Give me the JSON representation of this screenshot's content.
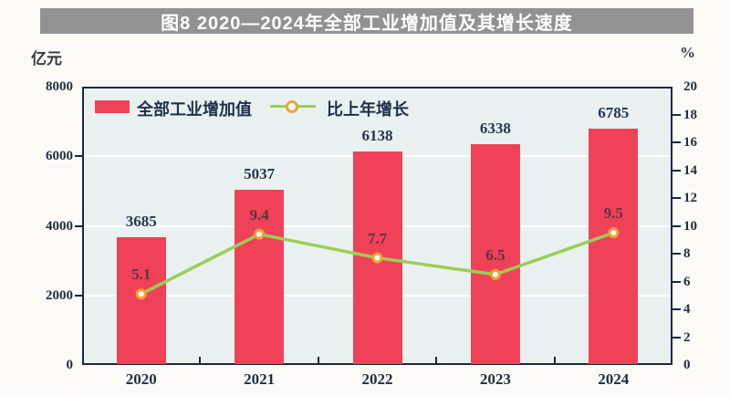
{
  "title": {
    "text": "图8  2020—2024年全部工业增加值及其增长速度"
  },
  "axes": {
    "left_unit": "亿元",
    "right_unit": "%"
  },
  "legend": {
    "bar_label": "全部工业增加值",
    "line_label": "比上年增长"
  },
  "chart_data": {
    "type": "bar",
    "title": "图8 2020—2024年全部工业增加值及其增长速度",
    "categories": [
      "2020",
      "2021",
      "2022",
      "2023",
      "2024"
    ],
    "series": [
      {
        "name": "全部工业增加值",
        "type": "bar",
        "axis": "left",
        "unit": "亿元",
        "values": [
          3685,
          5037,
          6138,
          6338,
          6785
        ],
        "color": "#ef4258"
      },
      {
        "name": "比上年增长",
        "type": "line",
        "axis": "right",
        "unit": "%",
        "values": [
          5.1,
          9.4,
          7.7,
          6.5,
          9.5
        ],
        "color": "#9bce52",
        "marker_color": "#f0a233"
      }
    ],
    "left_axis": {
      "label": "亿元",
      "min": 0,
      "max": 8000,
      "step": 2000,
      "tick_labels": [
        "0",
        "2000",
        "4000",
        "6000",
        "8000"
      ]
    },
    "right_axis": {
      "label": "%",
      "min": 0,
      "max": 20,
      "step": 2,
      "tick_labels": [
        "0",
        "2",
        "4",
        "6",
        "8",
        "10",
        "12",
        "14",
        "16",
        "18",
        "20"
      ]
    },
    "grid": true,
    "gridline_values_left": [
      2000,
      4000,
      6000
    ],
    "legend_position": "top-left-inside",
    "plot_bg": "#e9f1f0",
    "banner_bg": "#929292"
  }
}
